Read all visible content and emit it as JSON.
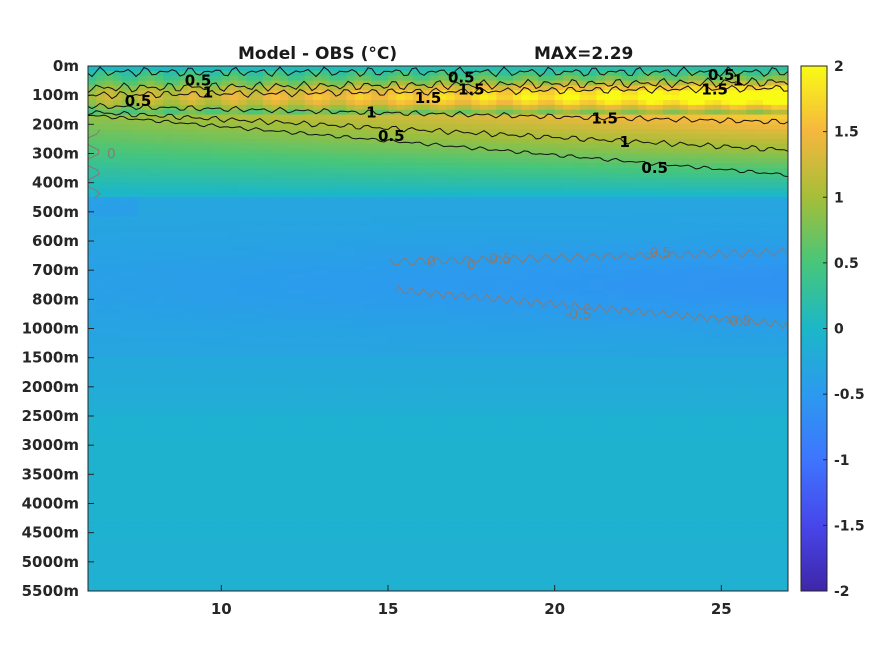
{
  "chart_data": {
    "type": "heatmap",
    "title_left": "Model - OBS (°C)",
    "title_right": "MAX=2.29",
    "x_ticks": [
      10,
      15,
      20,
      25
    ],
    "xlim": [
      6,
      27
    ],
    "y_tick_labels": [
      "0m",
      "100m",
      "200m",
      "300m",
      "400m",
      "500m",
      "600m",
      "700m",
      "800m",
      "1000m",
      "1500m",
      "2000m",
      "2500m",
      "3000m",
      "3500m",
      "4000m",
      "4500m",
      "5000m",
      "5500m"
    ],
    "colorbar": {
      "ticks": [
        2,
        1.5,
        1,
        0.5,
        0,
        -0.5,
        -1,
        -1.5,
        -2
      ],
      "labels": [
        "2",
        "1.5",
        "1",
        "0.5",
        "0",
        "-0.5",
        "-1",
        "-1.5",
        "-2"
      ],
      "range": [
        -2,
        2
      ],
      "colormap": "parula"
    },
    "contour_labels": [
      {
        "text": "0.5",
        "x": 9.3,
        "depth": "50m",
        "sign": "pos"
      },
      {
        "text": "1",
        "x": 9.6,
        "depth": "90m",
        "sign": "pos"
      },
      {
        "text": "0.5",
        "x": 7.5,
        "depth": "120m",
        "sign": "pos"
      },
      {
        "text": "0.5",
        "x": 17.2,
        "depth": "40m",
        "sign": "pos"
      },
      {
        "text": "1.5",
        "x": 17.5,
        "depth": "80m",
        "sign": "pos"
      },
      {
        "text": "1.5",
        "x": 16.2,
        "depth": "110m",
        "sign": "pos"
      },
      {
        "text": "1",
        "x": 14.5,
        "depth": "160m",
        "sign": "pos"
      },
      {
        "text": "0.5",
        "x": 15.1,
        "depth": "240m",
        "sign": "pos"
      },
      {
        "text": "1.5",
        "x": 21.5,
        "depth": "180m",
        "sign": "pos"
      },
      {
        "text": "1",
        "x": 22.1,
        "depth": "260m",
        "sign": "pos"
      },
      {
        "text": "0.5",
        "x": 23.0,
        "depth": "350m",
        "sign": "pos"
      },
      {
        "text": "0.5",
        "x": 25.0,
        "depth": "30m",
        "sign": "pos"
      },
      {
        "text": "1",
        "x": 25.5,
        "depth": "50m",
        "sign": "pos"
      },
      {
        "text": "1.5",
        "x": 24.8,
        "depth": "80m",
        "sign": "pos"
      },
      {
        "text": "-0.5",
        "x": 18.3,
        "depth": "660m",
        "sign": "neg"
      },
      {
        "text": "-0.5",
        "x": 23.1,
        "depth": "640m",
        "sign": "neg"
      },
      {
        "text": "-0.5",
        "x": 20.7,
        "depth": "900m",
        "sign": "neg"
      },
      {
        "text": "-0.5",
        "x": 25.5,
        "depth": "950m",
        "sign": "neg"
      },
      {
        "text": "0",
        "x": 6.7,
        "depth": "300m",
        "sign": "neg"
      },
      {
        "text": "0",
        "x": 16.3,
        "depth": "670m",
        "sign": "neg"
      },
      {
        "text": "0",
        "x": 17.5,
        "depth": "680m",
        "sign": "neg"
      }
    ],
    "field_description_profile": [
      {
        "depth": "0m",
        "diff": 0.1
      },
      {
        "depth": "100m",
        "diff": 1.6
      },
      {
        "depth": "200m",
        "diff": 1.2
      },
      {
        "depth": "300m",
        "diff": 0.6
      },
      {
        "depth": "400m",
        "diff": 0.0
      },
      {
        "depth": "700m",
        "diff": -0.4
      },
      {
        "depth": "1000m",
        "diff": -0.3
      },
      {
        "depth": "2000m",
        "diff": -0.1
      },
      {
        "depth": "5500m",
        "diff": 0.0
      }
    ]
  }
}
